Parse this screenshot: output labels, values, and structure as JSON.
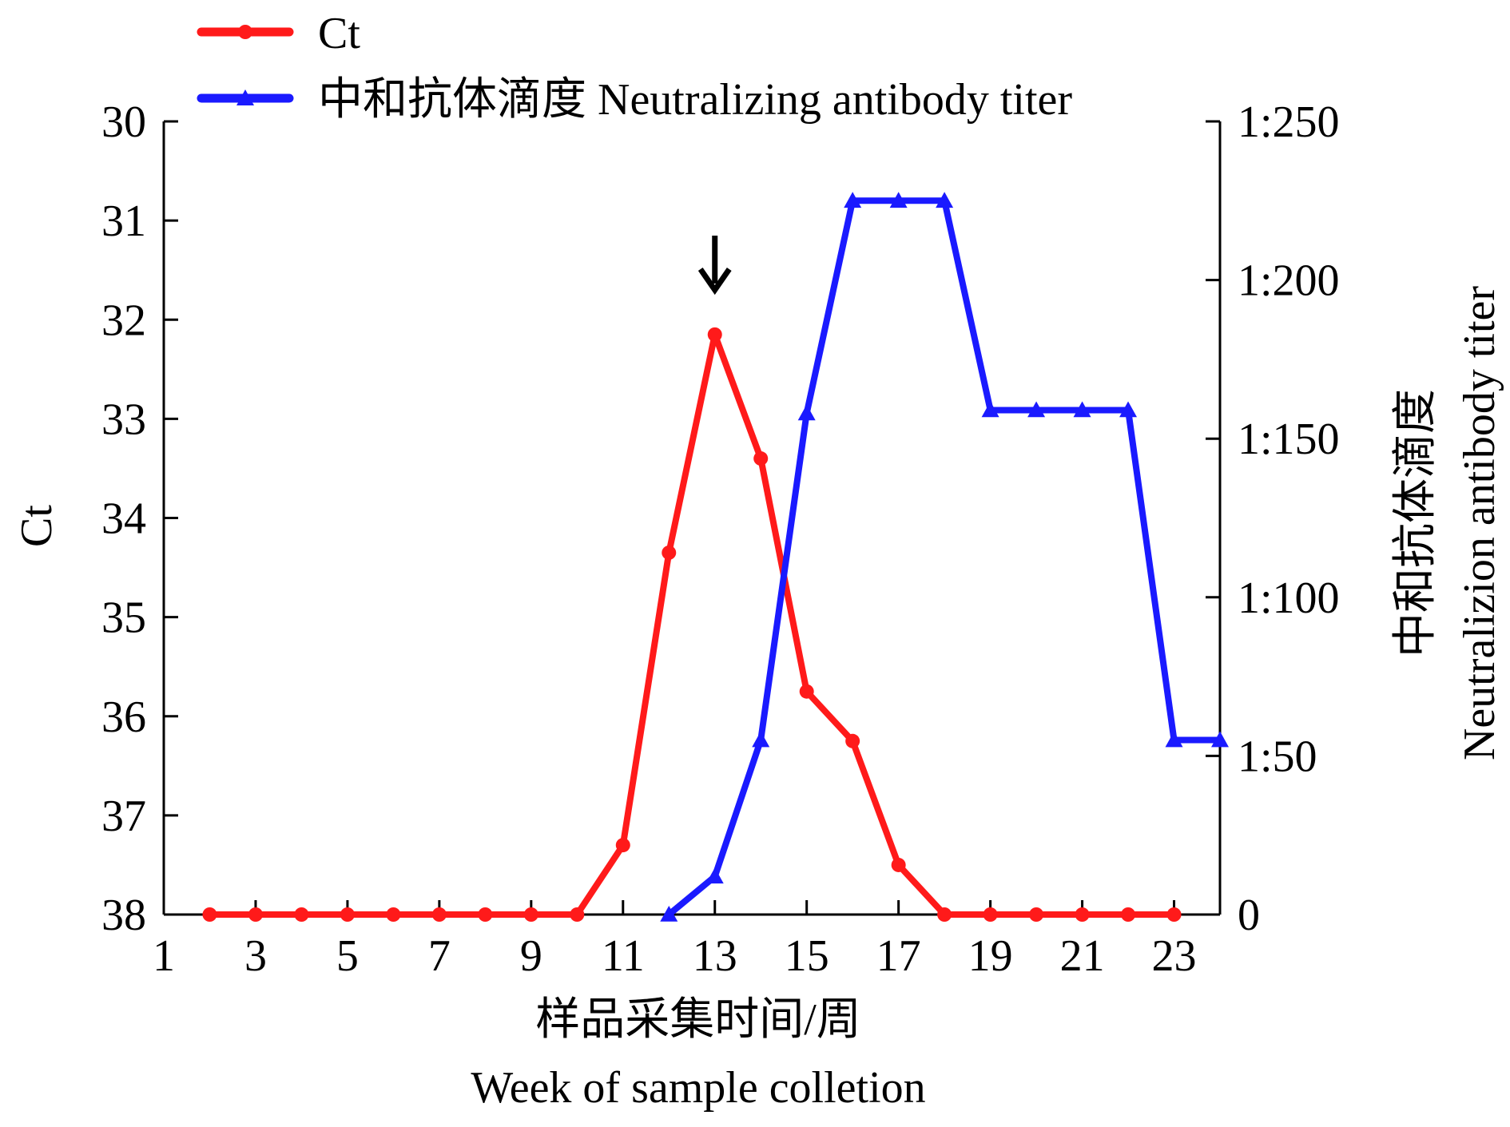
{
  "chart_data": {
    "type": "line",
    "title": "",
    "xlabel": [
      "样品采集时间/周",
      "Week of sample colletion"
    ],
    "ylabel_left": "Ct",
    "ylabel_right": [
      "中和抗体滴度",
      "Neutralizion antibody titer"
    ],
    "x_ticks": [
      "1",
      "3",
      "5",
      "7",
      "9",
      "11",
      "13",
      "15",
      "17",
      "19",
      "21",
      "23"
    ],
    "xlim": [
      1,
      24
    ],
    "y_left_ticks": [
      "30",
      "31",
      "32",
      "33",
      "34",
      "35",
      "36",
      "37",
      "38"
    ],
    "ylim_left": [
      30,
      38
    ],
    "y_right_tick_values": [
      0,
      50,
      100,
      150,
      200,
      250
    ],
    "y_right_tick_labels": [
      "0",
      "1:50",
      "1:100",
      "1:150",
      "1:200",
      "1:250"
    ],
    "ylim_right": [
      0,
      250
    ],
    "grid": false,
    "legend_position": "top-left",
    "annotation": {
      "type": "arrow-down",
      "x": 13,
      "y": 31.7,
      "axis": "left"
    },
    "series": [
      {
        "name": "Ct",
        "axis": "left",
        "color": "#ff1a1a",
        "marker": "circle",
        "x": [
          2,
          3,
          4,
          5,
          6,
          7,
          8,
          9,
          10,
          11,
          12,
          13,
          14,
          15,
          16,
          17,
          18,
          19,
          20,
          21,
          22,
          23
        ],
        "y": [
          38,
          38,
          38,
          38,
          38,
          38,
          38,
          38,
          38,
          37.3,
          34.35,
          32.15,
          33.4,
          35.75,
          36.25,
          37.5,
          38,
          38,
          38,
          38,
          38,
          38
        ]
      },
      {
        "name": "中和抗体滴度 Neutralizing antibody titer",
        "axis": "right",
        "color": "#1a1aff",
        "marker": "triangle",
        "x": [
          12,
          13,
          14,
          15,
          16,
          17,
          18,
          19,
          20,
          21,
          22,
          23,
          24
        ],
        "y": [
          0,
          12,
          55,
          158,
          225,
          225,
          225,
          159,
          159,
          159,
          159,
          55,
          55
        ]
      }
    ]
  }
}
